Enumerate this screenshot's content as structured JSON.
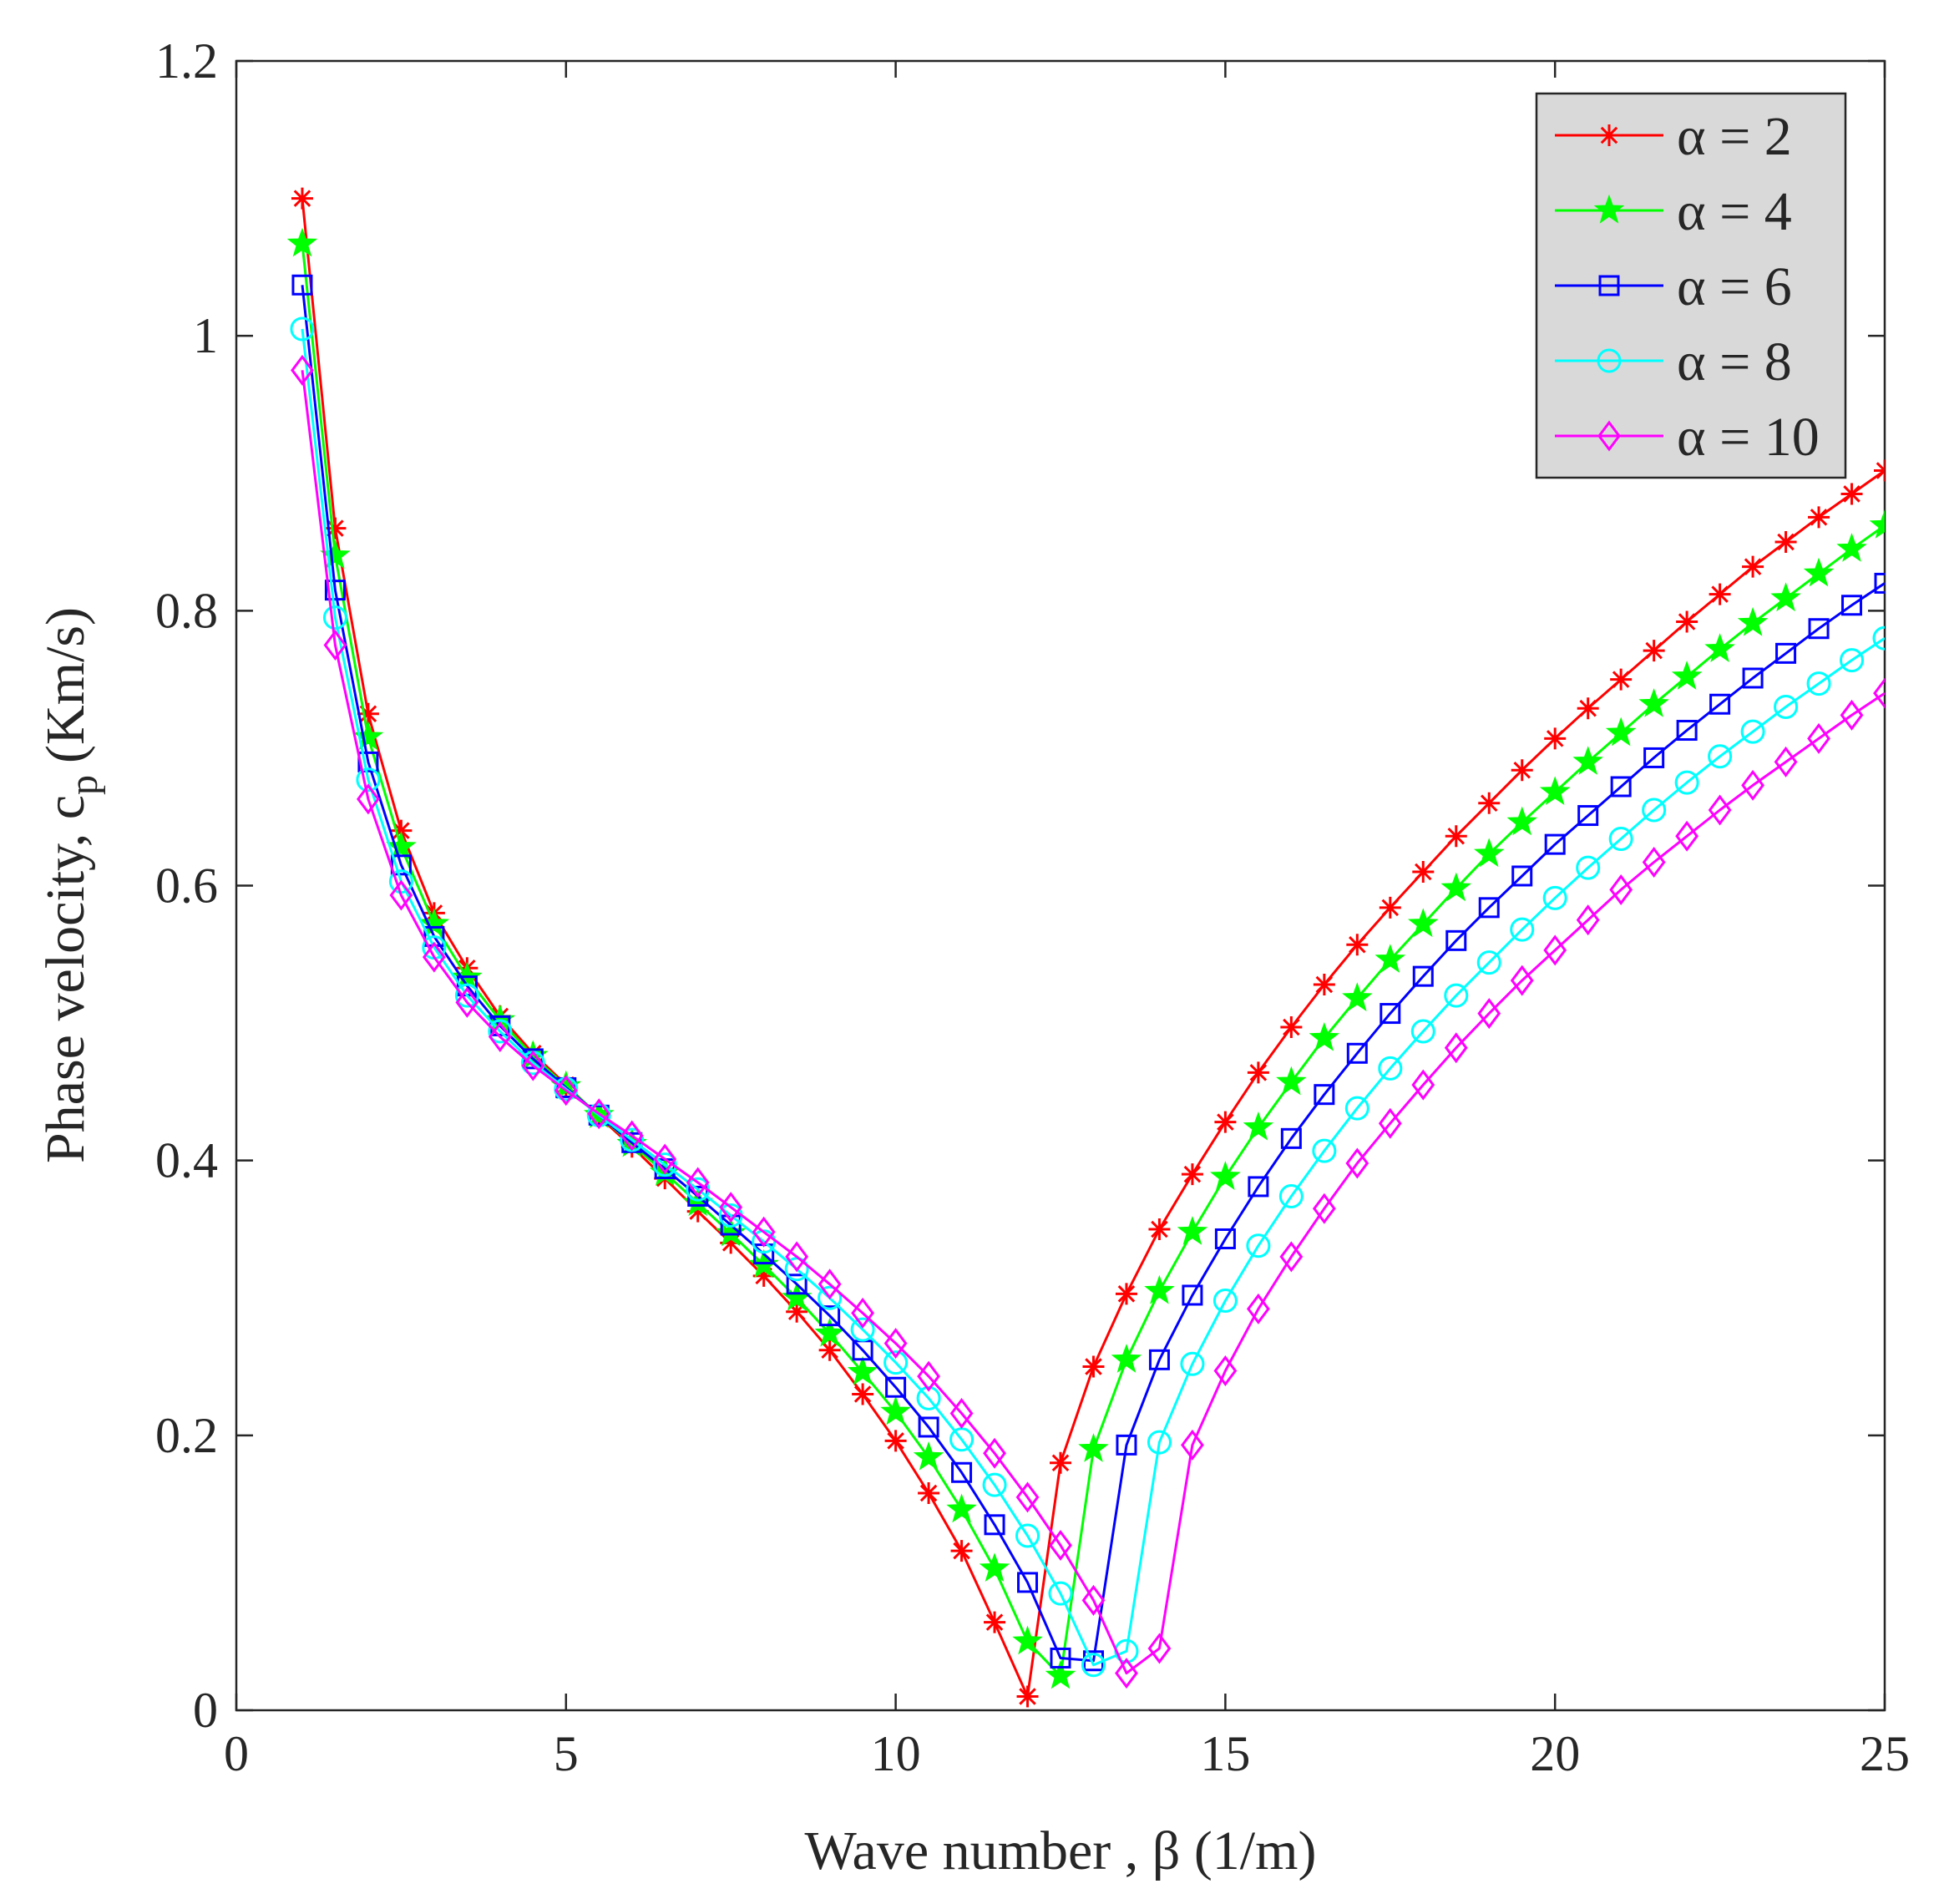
{
  "chart_data": {
    "type": "line",
    "title": "",
    "xlabel": "Wave number , β (1/m)",
    "ylabel_main": "Phase velocity, c",
    "ylabel_sub": "p",
    "ylabel_units": "(Km/s)",
    "xlim": [
      0,
      25
    ],
    "ylim": [
      0,
      1.2
    ],
    "xticks": [
      0,
      5,
      10,
      15,
      20,
      25
    ],
    "xtick_labels": [
      "0",
      "5",
      "10",
      "15",
      "20",
      "25"
    ],
    "yticks": [
      0,
      0.2,
      0.4,
      0.6,
      0.8,
      1.0,
      1.2
    ],
    "ytick_labels": [
      "0",
      "0.2",
      "0.4",
      "0.6",
      "0.8",
      "1",
      "1.2"
    ],
    "grid": false,
    "legend_position": "top-right",
    "series": [
      {
        "name": "α = 2",
        "color": "#ff0000",
        "marker": "asterisk",
        "x": [
          1,
          1.5,
          2,
          2.5,
          3,
          3.5,
          4,
          4.5,
          5,
          5.5,
          6,
          6.5,
          7,
          7.5,
          8,
          8.5,
          9,
          9.5,
          10,
          10.5,
          11,
          11.5,
          12,
          12.5,
          13,
          13.5,
          14,
          14.5,
          15,
          15.5,
          16,
          16.5,
          17,
          17.5,
          18,
          18.5,
          19,
          19.5,
          20,
          20.5,
          21,
          21.5,
          22,
          22.5,
          23,
          23.5,
          24,
          24.5,
          25
        ],
        "y": [
          1.1,
          0.86,
          0.725,
          0.64,
          0.58,
          0.54,
          0.505,
          0.478,
          0.455,
          0.432,
          0.41,
          0.387,
          0.363,
          0.34,
          0.316,
          0.29,
          0.262,
          0.23,
          0.196,
          0.158,
          0.116,
          0.064,
          0.01,
          0.18,
          0.25,
          0.303,
          0.35,
          0.39,
          0.428,
          0.464,
          0.497,
          0.528,
          0.557,
          0.584,
          0.61,
          0.636,
          0.66,
          0.684,
          0.707,
          0.729,
          0.75,
          0.771,
          0.792,
          0.812,
          0.832,
          0.85,
          0.868,
          0.885,
          0.902
        ]
      },
      {
        "name": "α = 4",
        "color": "#00ff00",
        "marker": "star",
        "x": [
          1,
          1.5,
          2,
          2.5,
          3,
          3.5,
          4,
          4.5,
          5,
          5.5,
          6,
          6.5,
          7,
          7.5,
          8,
          8.5,
          9,
          9.5,
          10,
          10.5,
          11,
          11.5,
          12,
          12.5,
          13,
          13.5,
          14,
          14.5,
          15,
          15.5,
          16,
          16.5,
          17,
          17.5,
          18,
          18.5,
          19,
          19.5,
          20,
          20.5,
          21,
          21.5,
          22,
          22.5,
          23,
          23.5,
          24,
          24.5,
          25
        ],
        "y": [
          1.067,
          0.84,
          0.708,
          0.628,
          0.572,
          0.533,
          0.502,
          0.476,
          0.454,
          0.433,
          0.412,
          0.391,
          0.369,
          0.347,
          0.324,
          0.3,
          0.274,
          0.246,
          0.217,
          0.184,
          0.146,
          0.103,
          0.05,
          0.025,
          0.19,
          0.255,
          0.305,
          0.348,
          0.388,
          0.424,
          0.457,
          0.489,
          0.518,
          0.546,
          0.572,
          0.598,
          0.623,
          0.646,
          0.668,
          0.69,
          0.711,
          0.732,
          0.752,
          0.772,
          0.791,
          0.809,
          0.827,
          0.845,
          0.862
        ]
      },
      {
        "name": "α = 6",
        "color": "#0000ff",
        "marker": "square",
        "x": [
          1,
          1.5,
          2,
          2.5,
          3,
          3.5,
          4,
          4.5,
          5,
          5.5,
          6,
          6.5,
          7,
          7.5,
          8,
          8.5,
          9,
          9.5,
          10,
          10.5,
          11,
          11.5,
          12,
          12.5,
          13,
          13.5,
          14,
          14.5,
          15,
          15.5,
          16,
          16.5,
          17,
          17.5,
          18,
          18.5,
          19,
          19.5,
          20,
          20.5,
          21,
          21.5,
          22,
          22.5,
          23,
          23.5,
          24,
          24.5,
          25
        ],
        "y": [
          1.037,
          0.815,
          0.69,
          0.615,
          0.563,
          0.527,
          0.498,
          0.474,
          0.453,
          0.433,
          0.413,
          0.394,
          0.374,
          0.353,
          0.332,
          0.31,
          0.287,
          0.262,
          0.235,
          0.206,
          0.173,
          0.135,
          0.093,
          0.038,
          0.036,
          0.193,
          0.255,
          0.302,
          0.343,
          0.381,
          0.416,
          0.448,
          0.478,
          0.507,
          0.534,
          0.56,
          0.584,
          0.607,
          0.63,
          0.651,
          0.672,
          0.693,
          0.713,
          0.732,
          0.751,
          0.769,
          0.787,
          0.804,
          0.82
        ]
      },
      {
        "name": "α = 8",
        "color": "#00ffff",
        "marker": "circle",
        "x": [
          1,
          1.5,
          2,
          2.5,
          3,
          3.5,
          4,
          4.5,
          5,
          5.5,
          6,
          6.5,
          7,
          7.5,
          8,
          8.5,
          9,
          9.5,
          10,
          10.5,
          11,
          11.5,
          12,
          12.5,
          13,
          13.5,
          14,
          14.5,
          15,
          15.5,
          16,
          16.5,
          17,
          17.5,
          18,
          18.5,
          19,
          19.5,
          20,
          20.5,
          21,
          21.5,
          22,
          22.5,
          23,
          23.5,
          24,
          24.5,
          25
        ],
        "y": [
          1.005,
          0.795,
          0.677,
          0.603,
          0.555,
          0.52,
          0.494,
          0.471,
          0.452,
          0.433,
          0.415,
          0.397,
          0.379,
          0.36,
          0.341,
          0.321,
          0.3,
          0.277,
          0.253,
          0.227,
          0.197,
          0.164,
          0.127,
          0.085,
          0.033,
          0.043,
          0.195,
          0.252,
          0.298,
          0.338,
          0.374,
          0.407,
          0.438,
          0.467,
          0.494,
          0.52,
          0.544,
          0.568,
          0.591,
          0.613,
          0.634,
          0.655,
          0.675,
          0.694,
          0.712,
          0.73,
          0.747,
          0.764,
          0.78
        ]
      },
      {
        "name": "α = 10",
        "color": "#ff00ff",
        "marker": "diamond",
        "x": [
          1,
          1.5,
          2,
          2.5,
          3,
          3.5,
          4,
          4.5,
          5,
          5.5,
          6,
          6.5,
          7,
          7.5,
          8,
          8.5,
          9,
          9.5,
          10,
          10.5,
          11,
          11.5,
          12,
          12.5,
          13,
          13.5,
          14,
          14.5,
          15,
          15.5,
          16,
          16.5,
          17,
          17.5,
          18,
          18.5,
          19,
          19.5,
          20,
          20.5,
          21,
          21.5,
          22,
          22.5,
          23,
          23.5,
          24,
          24.5,
          25
        ],
        "y": [
          0.975,
          0.775,
          0.663,
          0.593,
          0.548,
          0.515,
          0.49,
          0.469,
          0.451,
          0.434,
          0.418,
          0.401,
          0.384,
          0.366,
          0.348,
          0.33,
          0.31,
          0.289,
          0.267,
          0.243,
          0.216,
          0.187,
          0.155,
          0.12,
          0.08,
          0.027,
          0.045,
          0.193,
          0.247,
          0.292,
          0.33,
          0.365,
          0.398,
          0.427,
          0.455,
          0.482,
          0.507,
          0.531,
          0.553,
          0.575,
          0.597,
          0.617,
          0.636,
          0.655,
          0.673,
          0.69,
          0.707,
          0.724,
          0.74
        ]
      }
    ]
  }
}
